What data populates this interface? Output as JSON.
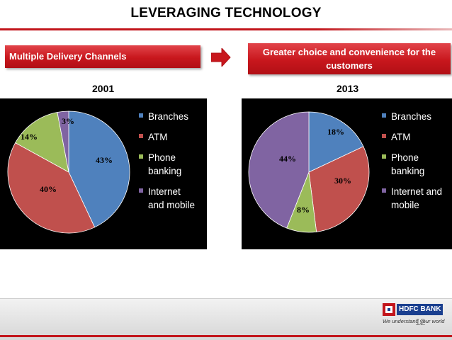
{
  "header": {
    "title": "LEVERAGING TECHNOLOGY"
  },
  "boxes": {
    "left": "Multiple Delivery Channels",
    "right_line1": "Greater choice and convenience for the",
    "right_line2": "customers"
  },
  "chart_data": [
    {
      "type": "pie",
      "title": "2001",
      "categories": [
        "Branches",
        "ATM",
        "Phone banking",
        "Internet and mobile"
      ],
      "values": [
        43,
        40,
        14,
        3
      ],
      "labels": [
        "43%",
        "40%",
        "14%",
        "3%"
      ],
      "legend_placement": "right",
      "legend_lines": [
        [
          "Branches"
        ],
        [
          "ATM"
        ],
        [
          "Phone",
          "banking"
        ],
        [
          "Internet",
          "and mobile"
        ]
      ]
    },
    {
      "type": "pie",
      "title": "2013",
      "categories": [
        "Branches",
        "ATM",
        "Phone banking",
        "Internet and mobile"
      ],
      "values": [
        18,
        30,
        8,
        44
      ],
      "labels": [
        "18%",
        "30%",
        "8%",
        "44%"
      ],
      "legend_placement": "right",
      "legend_lines": [
        [
          "Branches"
        ],
        [
          "ATM"
        ],
        [
          "Phone",
          "banking"
        ],
        [
          "Internet and",
          "mobile"
        ]
      ]
    }
  ],
  "colors": {
    "branches": "#4f81bd",
    "atm": "#c0504d",
    "phone": "#9bbb59",
    "internet": "#8064a2",
    "accent_red": "#c2151b",
    "panel_bg": "#000000"
  },
  "footer": {
    "logo_text": "HDFC BANK",
    "tagline": "We understand your world",
    "page_number": "12"
  }
}
